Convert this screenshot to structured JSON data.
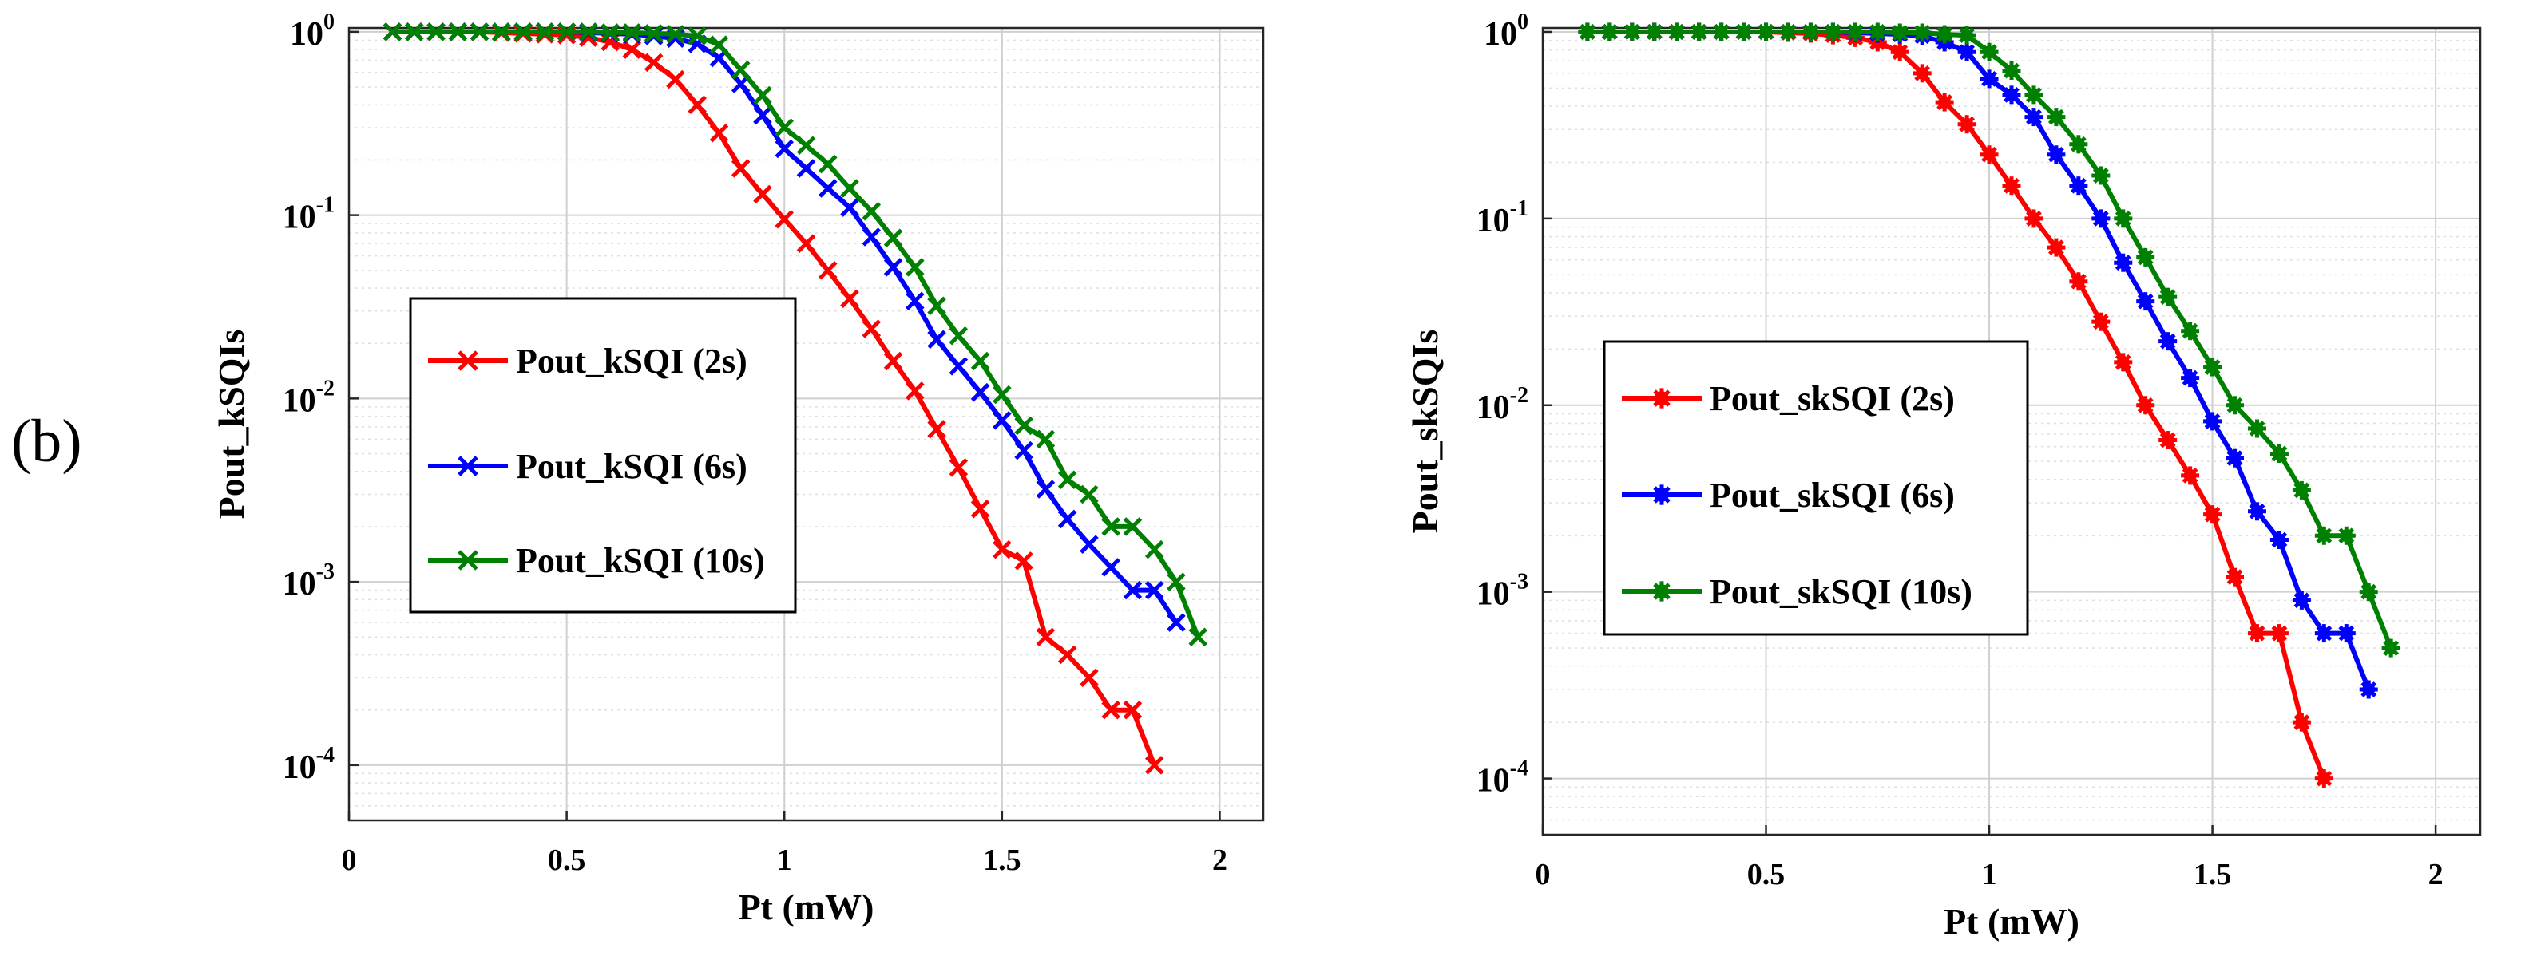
{
  "panel_label": "(b)",
  "chart_data": [
    {
      "type": "line",
      "title": "",
      "xlabel": "Pt (mW)",
      "ylabel": "Pout_kSQIs",
      "xlim": [
        0,
        2.1
      ],
      "ylim": [
        5e-05,
        1.05
      ],
      "yscale": "log",
      "grid": true,
      "legend_position": "center-left",
      "marker": "x",
      "xticks": [
        "0",
        "0.5",
        "1",
        "1.5",
        "2"
      ],
      "yticks": [
        {
          "base": "10",
          "exp": "0",
          "value": 1
        },
        {
          "base": "10",
          "exp": "-1",
          "value": 0.1
        },
        {
          "base": "10",
          "exp": "-2",
          "value": 0.01
        },
        {
          "base": "10",
          "exp": "-3",
          "value": 0.001
        },
        {
          "base": "10",
          "exp": "-4",
          "value": 0.0001
        }
      ],
      "series": [
        {
          "name": "Pout_kSQI (2s)",
          "color": "#ff0000",
          "x": [
            0.1,
            0.15,
            0.2,
            0.25,
            0.3,
            0.35,
            0.4,
            0.45,
            0.5,
            0.55,
            0.6,
            0.65,
            0.7,
            0.75,
            0.8,
            0.85,
            0.9,
            0.95,
            1.0,
            1.05,
            1.1,
            1.15,
            1.2,
            1.25,
            1.3,
            1.35,
            1.4,
            1.45,
            1.5,
            1.55,
            1.6,
            1.65,
            1.7,
            1.75,
            1.8,
            1.85
          ],
          "y": [
            1,
            1,
            1,
            1,
            1,
            0.99,
            0.98,
            0.97,
            0.96,
            0.93,
            0.88,
            0.8,
            0.68,
            0.55,
            0.4,
            0.28,
            0.18,
            0.13,
            0.095,
            0.07,
            0.05,
            0.035,
            0.024,
            0.016,
            0.011,
            0.0068,
            0.0042,
            0.0025,
            0.0015,
            0.0013,
            0.0005,
            0.0004,
            0.0003,
            0.0002,
            0.0002,
            0.0001
          ]
        },
        {
          "name": "Pout_kSQI (6s)",
          "color": "#0000ff",
          "x": [
            0.1,
            0.15,
            0.2,
            0.25,
            0.3,
            0.35,
            0.4,
            0.45,
            0.5,
            0.55,
            0.6,
            0.65,
            0.7,
            0.75,
            0.8,
            0.85,
            0.9,
            0.95,
            1.0,
            1.05,
            1.1,
            1.15,
            1.2,
            1.25,
            1.3,
            1.35,
            1.4,
            1.45,
            1.5,
            1.55,
            1.6,
            1.65,
            1.7,
            1.75,
            1.8,
            1.85,
            1.9
          ],
          "y": [
            1,
            1,
            1,
            1,
            1,
            1,
            1,
            1,
            1,
            0.99,
            0.98,
            0.97,
            0.95,
            0.92,
            0.86,
            0.72,
            0.52,
            0.35,
            0.23,
            0.18,
            0.14,
            0.11,
            0.076,
            0.052,
            0.034,
            0.021,
            0.015,
            0.0108,
            0.0076,
            0.0052,
            0.0032,
            0.0022,
            0.0016,
            0.0012,
            0.0009,
            0.0009,
            0.0006
          ]
        },
        {
          "name": "Pout_kSQI (10s)",
          "color": "#008000",
          "x": [
            0.1,
            0.15,
            0.2,
            0.25,
            0.3,
            0.35,
            0.4,
            0.45,
            0.5,
            0.55,
            0.6,
            0.65,
            0.7,
            0.75,
            0.8,
            0.85,
            0.9,
            0.95,
            1.0,
            1.05,
            1.1,
            1.15,
            1.2,
            1.25,
            1.3,
            1.35,
            1.4,
            1.45,
            1.5,
            1.55,
            1.6,
            1.65,
            1.7,
            1.75,
            1.8,
            1.85,
            1.9,
            1.95
          ],
          "y": [
            1,
            1,
            1,
            1,
            1,
            1,
            1,
            1,
            1,
            1,
            0.99,
            0.99,
            0.98,
            0.97,
            0.95,
            0.85,
            0.62,
            0.45,
            0.3,
            0.24,
            0.19,
            0.14,
            0.105,
            0.075,
            0.052,
            0.032,
            0.022,
            0.016,
            0.0105,
            0.0071,
            0.006,
            0.0036,
            0.003,
            0.002,
            0.002,
            0.0015,
            0.001,
            0.0005
          ]
        }
      ]
    },
    {
      "type": "line",
      "title": "",
      "xlabel": "Pt (mW)",
      "ylabel": "Pout_skSQIs",
      "xlim": [
        0,
        2.1
      ],
      "ylim": [
        5e-05,
        1.05
      ],
      "yscale": "log",
      "grid": true,
      "legend_position": "center-left",
      "marker": "asterisk",
      "xticks": [
        "0",
        "0.5",
        "1",
        "1.5",
        "2"
      ],
      "yticks": [
        {
          "base": "10",
          "exp": "0",
          "value": 1
        },
        {
          "base": "10",
          "exp": "-1",
          "value": 0.1
        },
        {
          "base": "10",
          "exp": "-2",
          "value": 0.01
        },
        {
          "base": "10",
          "exp": "-3",
          "value": 0.001
        },
        {
          "base": "10",
          "exp": "-4",
          "value": 0.0001
        }
      ],
      "series": [
        {
          "name": "Pout_skSQI (2s)",
          "color": "#ff0000",
          "x": [
            0.1,
            0.15,
            0.2,
            0.25,
            0.3,
            0.35,
            0.4,
            0.45,
            0.5,
            0.55,
            0.6,
            0.65,
            0.7,
            0.75,
            0.8,
            0.85,
            0.9,
            0.95,
            1.0,
            1.05,
            1.1,
            1.15,
            1.2,
            1.25,
            1.3,
            1.35,
            1.4,
            1.45,
            1.5,
            1.55,
            1.6,
            1.65,
            1.7,
            1.75
          ],
          "y": [
            1,
            1,
            1,
            1,
            1,
            1,
            1,
            1,
            1,
            0.99,
            0.98,
            0.96,
            0.93,
            0.88,
            0.78,
            0.6,
            0.42,
            0.32,
            0.22,
            0.15,
            0.1,
            0.07,
            0.046,
            0.028,
            0.017,
            0.01,
            0.0065,
            0.0042,
            0.0026,
            0.0012,
            0.0006,
            0.0006,
            0.0002,
            0.0001
          ]
        },
        {
          "name": "Pout_skSQI (6s)",
          "color": "#0000ff",
          "x": [
            0.1,
            0.15,
            0.2,
            0.25,
            0.3,
            0.35,
            0.4,
            0.45,
            0.5,
            0.55,
            0.6,
            0.65,
            0.7,
            0.75,
            0.8,
            0.85,
            0.9,
            0.95,
            1.0,
            1.05,
            1.1,
            1.15,
            1.2,
            1.25,
            1.3,
            1.35,
            1.4,
            1.45,
            1.5,
            1.55,
            1.6,
            1.65,
            1.7,
            1.75,
            1.8,
            1.85
          ],
          "y": [
            1,
            1,
            1,
            1,
            1,
            1,
            1,
            1,
            1,
            1,
            1,
            1,
            0.99,
            0.98,
            0.97,
            0.95,
            0.88,
            0.78,
            0.56,
            0.46,
            0.35,
            0.22,
            0.15,
            0.1,
            0.058,
            0.036,
            0.022,
            0.014,
            0.0082,
            0.0052,
            0.0027,
            0.0019,
            0.0009,
            0.0006,
            0.0006,
            0.0003
          ]
        },
        {
          "name": "Pout_skSQI (10s)",
          "color": "#008000",
          "x": [
            0.1,
            0.15,
            0.2,
            0.25,
            0.3,
            0.35,
            0.4,
            0.45,
            0.5,
            0.55,
            0.6,
            0.65,
            0.7,
            0.75,
            0.8,
            0.85,
            0.9,
            0.95,
            1.0,
            1.05,
            1.1,
            1.15,
            1.2,
            1.25,
            1.3,
            1.35,
            1.4,
            1.45,
            1.5,
            1.55,
            1.6,
            1.65,
            1.7,
            1.75,
            1.8,
            1.85,
            1.9
          ],
          "y": [
            1,
            1,
            1,
            1,
            1,
            1,
            1,
            1,
            1,
            1,
            1,
            1,
            1,
            1,
            0.99,
            0.99,
            0.97,
            0.96,
            0.78,
            0.62,
            0.46,
            0.35,
            0.25,
            0.17,
            0.1,
            0.062,
            0.038,
            0.025,
            0.016,
            0.01,
            0.0075,
            0.0055,
            0.0035,
            0.002,
            0.002,
            0.001,
            0.0005
          ]
        }
      ]
    }
  ]
}
